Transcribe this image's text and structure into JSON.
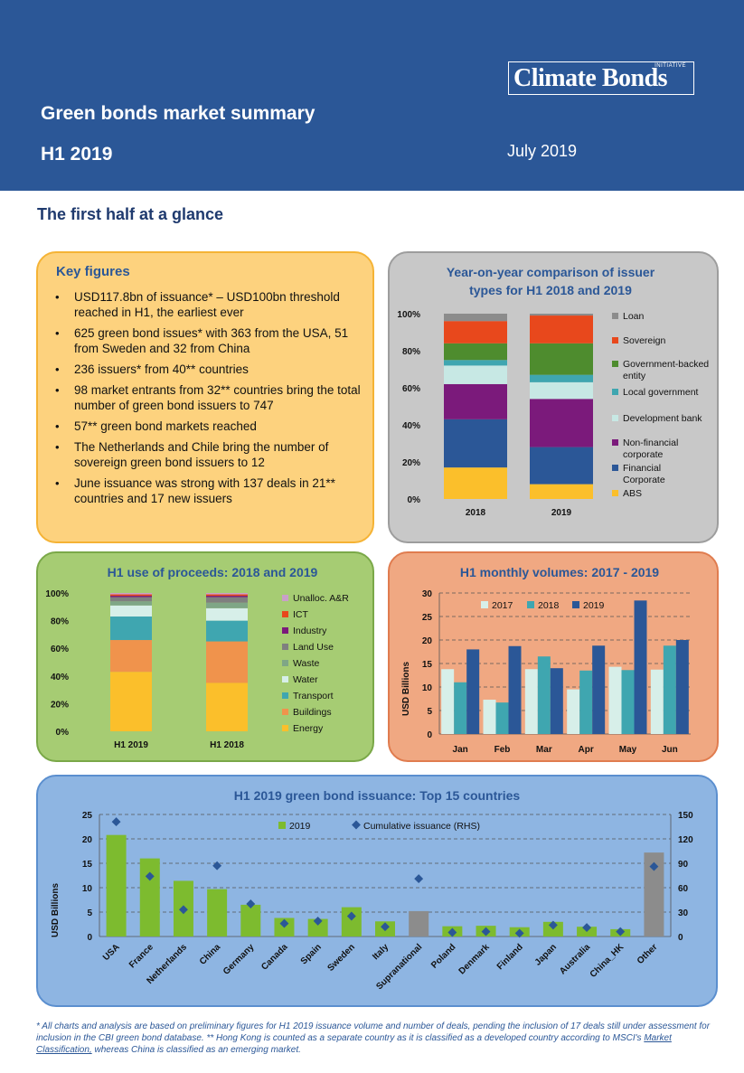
{
  "header": {
    "logo_main": "Climate Bonds",
    "logo_sup": "INITIATIVE",
    "title": "Green bonds market summary",
    "subtitle": "H1 2019",
    "date": "July 2019"
  },
  "section_title": "The first half at a glance",
  "key_figures": {
    "title": "Key figures",
    "items": [
      "USD117.8bn of issuance* – USD100bn threshold reached in H1, the earliest ever",
      "625 green bond issues* with 363 from the USA, 51 from Sweden and 32 from China",
      "236 issuers* from 40** countries",
      "98 market entrants from 32** countries bring the total number of green bond issuers to 747",
      "57** green bond markets reached",
      "The Netherlands and Chile bring the number of sovereign green bond issuers to 12",
      "June issuance was strong with 137 deals in 21** countries and 17 new issuers"
    ]
  },
  "chart_data": [
    {
      "type": "bar",
      "stacked": true,
      "title": "Year-on-year comparison of issuer types for H1 2018 and 2019",
      "categories": [
        "2018",
        "2019"
      ],
      "y_ticks": [
        "0%",
        "20%",
        "40%",
        "60%",
        "80%",
        "100%"
      ],
      "ylim": [
        0,
        100
      ],
      "legend_position": "right",
      "series": [
        {
          "name": "ABS",
          "color": "#fbbf2b",
          "values": [
            17,
            8
          ]
        },
        {
          "name": "Financial Corporate",
          "color": "#2b5797",
          "values": [
            26,
            20
          ]
        },
        {
          "name": "Non-financial corporate",
          "color": "#7b1a7b",
          "values": [
            19,
            26
          ]
        },
        {
          "name": "Development bank",
          "color": "#c7e8e4",
          "values": [
            10,
            9
          ]
        },
        {
          "name": "Local government",
          "color": "#3fa6b0",
          "values": [
            3,
            4
          ]
        },
        {
          "name": "Government-backed entity",
          "color": "#4e8c2e",
          "values": [
            9,
            17
          ]
        },
        {
          "name": "Sovereign",
          "color": "#e8481c",
          "values": [
            12,
            15
          ]
        },
        {
          "name": "Loan",
          "color": "#8c8c8c",
          "values": [
            4,
            1
          ]
        }
      ]
    },
    {
      "type": "bar",
      "stacked": true,
      "title": "H1 use of proceeds: 2018 and 2019",
      "categories": [
        "H1 2019",
        "H1 2018"
      ],
      "y_ticks": [
        "0%",
        "20%",
        "40%",
        "60%",
        "80%",
        "100%"
      ],
      "ylim": [
        0,
        100
      ],
      "legend_position": "right",
      "series": [
        {
          "name": "Energy",
          "color": "#fbbf2b",
          "values": [
            43,
            35
          ]
        },
        {
          "name": "Buildings",
          "color": "#f0934c",
          "values": [
            23,
            30
          ]
        },
        {
          "name": "Transport",
          "color": "#3fa6b0",
          "values": [
            17,
            15
          ]
        },
        {
          "name": "Water",
          "color": "#d7efe9",
          "values": [
            8,
            9
          ]
        },
        {
          "name": "Waste",
          "color": "#7fa686",
          "values": [
            3,
            4
          ]
        },
        {
          "name": "Land Use",
          "color": "#7f7f7f",
          "values": [
            3,
            4
          ]
        },
        {
          "name": "Industry",
          "color": "#7b1a7b",
          "values": [
            1,
            1
          ]
        },
        {
          "name": "ICT",
          "color": "#e8481c",
          "values": [
            1,
            1
          ]
        },
        {
          "name": "Unalloc. A&R",
          "color": "#c9a0c9",
          "values": [
            1,
            1
          ]
        }
      ]
    },
    {
      "type": "bar",
      "title": "H1 monthly volumes: 2017 - 2019",
      "ylabel": "USD Billions",
      "categories": [
        "Jan",
        "Feb",
        "Mar",
        "Apr",
        "May",
        "Jun"
      ],
      "y_ticks": [
        "0",
        "5",
        "10",
        "15",
        "20",
        "25",
        "30"
      ],
      "ylim": [
        0,
        30
      ],
      "grid": true,
      "legend_position": "top",
      "series": [
        {
          "name": "2017",
          "color": "#d7efe9",
          "values": [
            13.8,
            7.3,
            13.8,
            9.5,
            14.3,
            13.7
          ]
        },
        {
          "name": "2018",
          "color": "#3fa6b0",
          "values": [
            11.0,
            6.7,
            16.5,
            13.5,
            13.6,
            18.8
          ]
        },
        {
          "name": "2019",
          "color": "#2b5797",
          "values": [
            18.0,
            18.7,
            14.0,
            18.8,
            28.4,
            20.0
          ]
        }
      ]
    },
    {
      "type": "bar",
      "title": "H1 2019 green bond issuance: Top 15 countries",
      "ylabel": "USD Billions",
      "categories": [
        "USA",
        "France",
        "Netherlands",
        "China",
        "Germany",
        "Canada",
        "Spain",
        "Sweden",
        "Italy",
        "Supranational",
        "Poland",
        "Denmark",
        "Finland",
        "Japan",
        "Australia",
        "China_HK",
        "Other"
      ],
      "y_ticks": [
        "0",
        "5",
        "10",
        "15",
        "20",
        "25"
      ],
      "y2_ticks": [
        "0",
        "30",
        "60",
        "90",
        "120",
        "150"
      ],
      "ylim": [
        0,
        25
      ],
      "y2lim": [
        0,
        150
      ],
      "grid": true,
      "legend_position": "top",
      "series": [
        {
          "name": "2019",
          "color": "#7dbb2f",
          "values": [
            20.8,
            16.0,
            11.4,
            9.7,
            6.5,
            3.8,
            3.6,
            6.0,
            3.1,
            5.2,
            2.1,
            2.2,
            1.9,
            3.0,
            2.0,
            1.5,
            17.2
          ],
          "special_colors": {
            "Supranational": "#8c8c8c",
            "Other": "#8c8c8c"
          }
        },
        {
          "name": "Cumulative issuance (RHS)",
          "color": "#2b5797",
          "type": "scatter",
          "axis": "right",
          "values": [
            141,
            74,
            33,
            87,
            40,
            16,
            19,
            25,
            12,
            71,
            5,
            6,
            4,
            14,
            11,
            6,
            86
          ]
        }
      ]
    }
  ],
  "footnote": {
    "text_part1": "* All charts and analysis are based on preliminary figures for H1 2019 issuance volume and number of deals, pending the inclusion of 17 deals still under assessment for inclusion in the CBI green bond database. ** Hong Kong is counted as a separate country as it is classified as a developed country according to MSCI's ",
    "link": "Market Classification,",
    "text_part2": " whereas China is classified as an emerging market."
  }
}
